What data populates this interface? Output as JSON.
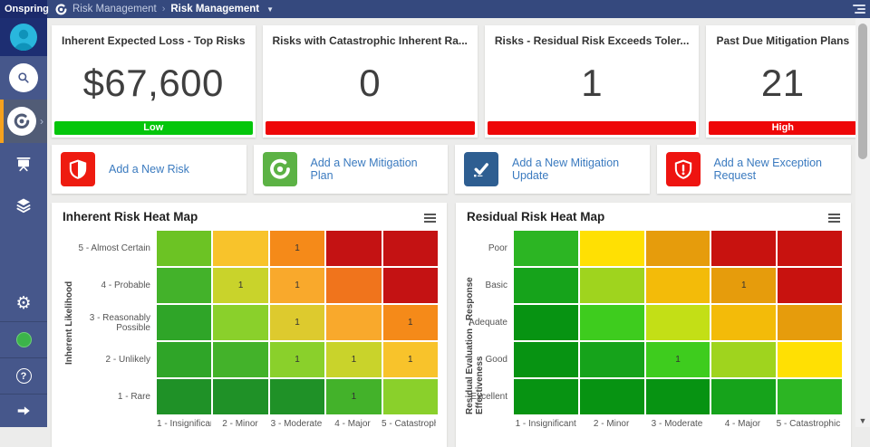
{
  "brand": {
    "name": "Onspring"
  },
  "topbar": {
    "breadcrumb_app": "Risk Management",
    "separator": "›",
    "breadcrumb_page": "Risk Management",
    "caret": "▼"
  },
  "sidebar": {
    "icons": [
      "user-avatar",
      "search",
      "risk-management-spiral-active",
      "presentation-screen",
      "layers",
      "settings-gear",
      "status-green-dot",
      "help-question",
      "collapse-arrow"
    ]
  },
  "kpis": [
    {
      "title": "Inherent Expected Loss - Top Risks",
      "value": "$67,600",
      "bar_label": "Low",
      "bar_color": "#04c60b"
    },
    {
      "title": "Risks with Catastrophic Inherent Ra...",
      "value": "0",
      "bar_label": "",
      "bar_color": "#ee0708"
    },
    {
      "title": "Risks - Residual Risk Exceeds Toler...",
      "value": "1",
      "bar_label": "",
      "bar_color": "#ee0708"
    },
    {
      "title": "Past Due Mitigation Plans",
      "value": "21",
      "bar_label": "High",
      "bar_color": "#ee0708"
    }
  ],
  "actions": [
    {
      "label": "Add a New Risk",
      "icon": "shield-half",
      "tile_color": "#ee1b10"
    },
    {
      "label": "Add a New Mitigation Plan",
      "icon": "spiral",
      "tile_color": "#5cb245"
    },
    {
      "label": "Add a New Mitigation Update",
      "icon": "check-tasks",
      "tile_color": "#2e5e91"
    },
    {
      "label": "Add a New Exception Request",
      "icon": "shield-exclaim",
      "tile_color": "#ee1410"
    }
  ],
  "chart_data": [
    {
      "type": "heatmap",
      "title": "Inherent Risk Heat Map",
      "ylabel": "Inherent Likelihood",
      "y_categories": [
        "5 - Almost Certain",
        "4 - Probable",
        "3 - Reasonably Possible",
        "2 - Unlikely",
        "1 - Rare"
      ],
      "x_categories": [
        "1 - Insignificant",
        "2 - Minor",
        "3 - Moderate",
        "4 - Major",
        "5 - Catastrophic"
      ],
      "rows": [
        [
          {
            "color": "#6cc324",
            "label": ""
          },
          {
            "color": "#f8c32b",
            "label": ""
          },
          {
            "color": "#f58a19",
            "label": "1"
          },
          {
            "color": "#c41213",
            "label": ""
          },
          {
            "color": "#c41213",
            "label": ""
          }
        ],
        [
          {
            "color": "#43b22a",
            "label": ""
          },
          {
            "color": "#c9d32b",
            "label": "1"
          },
          {
            "color": "#f9a92c",
            "label": "1"
          },
          {
            "color": "#f0741c",
            "label": ""
          },
          {
            "color": "#c41213",
            "label": ""
          }
        ],
        [
          {
            "color": "#2fa528",
            "label": ""
          },
          {
            "color": "#8ad02b",
            "label": ""
          },
          {
            "color": "#ddca2e",
            "label": "1"
          },
          {
            "color": "#f9a92c",
            "label": ""
          },
          {
            "color": "#f58a19",
            "label": "1"
          }
        ],
        [
          {
            "color": "#2fa528",
            "label": ""
          },
          {
            "color": "#43b22a",
            "label": ""
          },
          {
            "color": "#8ad02b",
            "label": "1"
          },
          {
            "color": "#c9d32b",
            "label": "1"
          },
          {
            "color": "#f8c32b",
            "label": "1"
          }
        ],
        [
          {
            "color": "#1f9127",
            "label": ""
          },
          {
            "color": "#1f9127",
            "label": ""
          },
          {
            "color": "#1f9127",
            "label": ""
          },
          {
            "color": "#43b22a",
            "label": "1"
          },
          {
            "color": "#8ad02b",
            "label": ""
          }
        ]
      ]
    },
    {
      "type": "heatmap",
      "title": "Residual Risk Heat Map",
      "ylabel": "Residual Evaluation - Response Effectiveness",
      "y_categories": [
        "Poor",
        "Basic",
        "Adequate",
        "Good",
        "Excellent"
      ],
      "x_categories": [
        "1 - Insignificant",
        "2 - Minor",
        "3 - Moderate",
        "4 - Major",
        "5 - Catastrophic"
      ],
      "rows": [
        [
          {
            "color": "#2cb523",
            "label": ""
          },
          {
            "color": "#ffe003",
            "label": ""
          },
          {
            "color": "#e69c0c",
            "label": ""
          },
          {
            "color": "#c8120f",
            "label": ""
          },
          {
            "color": "#c8120f",
            "label": ""
          }
        ],
        [
          {
            "color": "#16a31b",
            "label": ""
          },
          {
            "color": "#9fd41e",
            "label": ""
          },
          {
            "color": "#f3bb09",
            "label": ""
          },
          {
            "color": "#e69c0c",
            "label": "1"
          },
          {
            "color": "#c8120f",
            "label": ""
          }
        ],
        [
          {
            "color": "#079312",
            "label": ""
          },
          {
            "color": "#3ecc1e",
            "label": ""
          },
          {
            "color": "#c3df16",
            "label": ""
          },
          {
            "color": "#f3bb09",
            "label": ""
          },
          {
            "color": "#e69c0c",
            "label": ""
          }
        ],
        [
          {
            "color": "#079312",
            "label": ""
          },
          {
            "color": "#16a31b",
            "label": ""
          },
          {
            "color": "#3ecc1e",
            "label": "1"
          },
          {
            "color": "#9fd41e",
            "label": ""
          },
          {
            "color": "#ffe003",
            "label": ""
          }
        ],
        [
          {
            "color": "#079312",
            "label": ""
          },
          {
            "color": "#079312",
            "label": ""
          },
          {
            "color": "#079312",
            "label": ""
          },
          {
            "color": "#16a31b",
            "label": ""
          },
          {
            "color": "#2cb523",
            "label": ""
          }
        ]
      ]
    }
  ]
}
